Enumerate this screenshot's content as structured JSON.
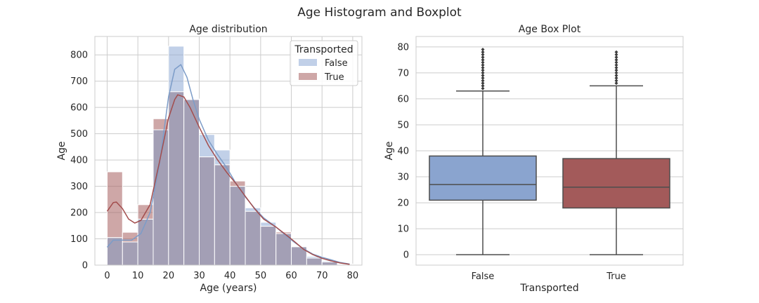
{
  "suptitle": "Age Histogram and Boxplot",
  "colors": {
    "false": "#8eaad6",
    "true": "#a65e5e",
    "false_line": "#7c9cc8",
    "true_line": "#a34d4d",
    "overlap": "#a39fb5"
  },
  "chart_data": [
    {
      "type": "histogram",
      "title": "Age distribution",
      "xlabel": "Age (years)",
      "ylabel": "Age",
      "xlim": [
        -4,
        83
      ],
      "ylim": [
        0,
        870
      ],
      "xticks": [
        0,
        10,
        20,
        30,
        40,
        50,
        60,
        70,
        80
      ],
      "yticks": [
        0,
        100,
        200,
        300,
        400,
        500,
        600,
        700,
        800
      ],
      "bin_width": 5,
      "bin_edges": [
        0,
        5,
        10,
        15,
        20,
        25,
        30,
        35,
        40,
        45,
        50,
        55,
        60,
        65,
        70,
        75,
        80
      ],
      "legend": {
        "title": "Transported",
        "placement": "top-right",
        "entries": [
          "False",
          "True"
        ]
      },
      "series": [
        {
          "name": "False",
          "counts": [
            105,
            88,
            175,
            515,
            833,
            630,
            497,
            438,
            300,
            218,
            163,
            120,
            72,
            33,
            16,
            4
          ]
        },
        {
          "name": "True",
          "counts": [
            355,
            125,
            230,
            557,
            660,
            632,
            412,
            382,
            320,
            205,
            148,
            126,
            70,
            27,
            12,
            3
          ]
        }
      ],
      "kde": [
        {
          "name": "False",
          "points": [
            [
              0,
              68
            ],
            [
              2,
              95
            ],
            [
              5,
              95
            ],
            [
              8,
              95
            ],
            [
              11,
              120
            ],
            [
              14,
              200
            ],
            [
              17,
              380
            ],
            [
              20,
              640
            ],
            [
              22,
              745
            ],
            [
              24,
              763
            ],
            [
              26,
              715
            ],
            [
              28,
              628
            ],
            [
              30,
              555
            ],
            [
              33,
              475
            ],
            [
              36,
              420
            ],
            [
              39,
              370
            ],
            [
              42,
              310
            ],
            [
              45,
              260
            ],
            [
              48,
              217
            ],
            [
              51,
              180
            ],
            [
              55,
              145
            ],
            [
              58,
              115
            ],
            [
              61,
              87
            ],
            [
              64,
              62
            ],
            [
              67,
              42
            ],
            [
              70,
              30
            ],
            [
              73,
              20
            ],
            [
              76,
              10
            ],
            [
              79,
              4
            ]
          ]
        },
        {
          "name": "True",
          "points": [
            [
              0,
              205
            ],
            [
              2,
              238
            ],
            [
              3,
              240
            ],
            [
              5,
              215
            ],
            [
              7,
              175
            ],
            [
              9,
              160
            ],
            [
              11,
              170
            ],
            [
              14,
              230
            ],
            [
              17,
              390
            ],
            [
              20,
              560
            ],
            [
              22,
              630
            ],
            [
              23,
              648
            ],
            [
              25,
              640
            ],
            [
              27,
              600
            ],
            [
              30,
              525
            ],
            [
              33,
              455
            ],
            [
              36,
              400
            ],
            [
              39,
              352
            ],
            [
              42,
              310
            ],
            [
              45,
              262
            ],
            [
              48,
              215
            ],
            [
              51,
              175
            ],
            [
              55,
              145
            ],
            [
              58,
              118
            ],
            [
              61,
              90
            ],
            [
              64,
              60
            ],
            [
              67,
              40
            ],
            [
              70,
              26
            ],
            [
              73,
              16
            ],
            [
              76,
              8
            ],
            [
              79,
              3
            ]
          ]
        }
      ]
    },
    {
      "type": "boxplot",
      "title": "Age Box Plot",
      "xlabel": "Transported",
      "ylabel": "Age",
      "ylim": [
        -4,
        84
      ],
      "yticks": [
        0,
        10,
        20,
        30,
        40,
        50,
        60,
        70,
        80
      ],
      "categories": [
        "False",
        "True"
      ],
      "boxes": [
        {
          "name": "False",
          "whisker_low": 0,
          "q1": 21,
          "median": 27,
          "q3": 38,
          "whisker_high": 63,
          "outliers": [
            64,
            65,
            66,
            67,
            68,
            69,
            70,
            71,
            72,
            73,
            74,
            75,
            76,
            77,
            78,
            79
          ]
        },
        {
          "name": "True",
          "whisker_low": 0,
          "q1": 18,
          "median": 26,
          "q3": 37,
          "whisker_high": 65,
          "outliers": [
            66,
            67,
            68,
            69,
            70,
            71,
            72,
            73,
            74,
            75,
            76,
            77,
            78
          ]
        }
      ]
    }
  ]
}
